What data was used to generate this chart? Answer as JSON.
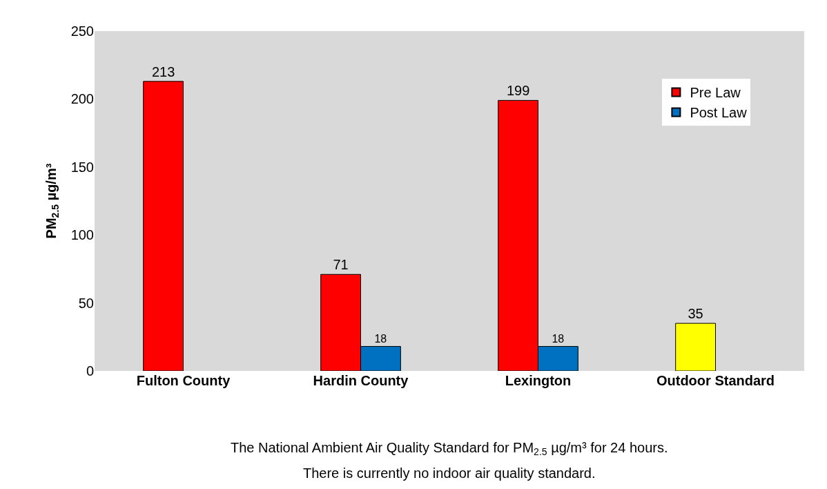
{
  "chart_data": {
    "type": "bar",
    "ylabel": "PM$_{2.5}$ µg/m³",
    "categories": [
      "Fulton County",
      "Hardin County",
      "Lexington",
      "Outdoor Standard"
    ],
    "series": [
      {
        "name": "Pre Law",
        "color": "#ff0000",
        "colors": [
          "#ff0000",
          "#ff0000",
          "#ff0000",
          "#ffff00"
        ],
        "values": [
          213,
          71,
          199,
          35
        ]
      },
      {
        "name": "Post Law",
        "color": "#0070c0",
        "values": [
          null,
          18,
          18,
          null
        ]
      }
    ],
    "ylim": [
      0,
      250
    ],
    "yticks": [
      0,
      50,
      100,
      150,
      200,
      250
    ],
    "data_labels": true,
    "legend": "top right",
    "grid": false,
    "annotations": [
      "The National Ambient Air Quality Standard for PM$_{2.5}$ µg/m³ for 24 hours.",
      "There is currently no indoor air quality standard."
    ]
  }
}
